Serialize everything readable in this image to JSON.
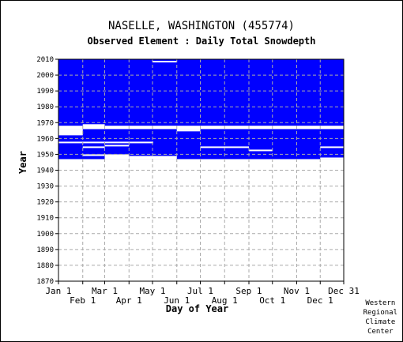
{
  "chart_data": {
    "type": "heatmap",
    "title": "NASELLE, WASHINGTON   (455774)",
    "subtitle": "Observed Element : Daily Total Snowdepth",
    "xlabel": "Day of Year",
    "ylabel": "Year",
    "ylim": [
      1870,
      2010
    ],
    "y_ticks": [
      1870,
      1880,
      1890,
      1900,
      1910,
      1920,
      1930,
      1940,
      1950,
      1960,
      1970,
      1980,
      1990,
      2000,
      2010
    ],
    "x_ticks_top_row": [
      "Jan 1",
      "Mar 1",
      "May 1",
      "Jul 1",
      "Sep 1",
      "Nov 1",
      "Dec 31"
    ],
    "x_ticks_bottom_row": [
      "Feb 1",
      "Apr 1",
      "Jun 1",
      "Aug 1",
      "Oct 1",
      "Dec 1"
    ],
    "tick_days": [
      1,
      32,
      60,
      91,
      121,
      152,
      182,
      213,
      244,
      274,
      305,
      335,
      365
    ],
    "grid": true,
    "data_color": "#0000ff",
    "legend": "none",
    "coverage": [
      {
        "name": "data present",
        "year_range": [
          1968,
          2010
        ],
        "day_range": [
          1,
          365
        ]
      },
      {
        "name": "data present",
        "year_range": [
          1947,
          1966
        ],
        "day_range": [
          1,
          365
        ]
      }
    ],
    "gaps": [
      {
        "year_range": [
          1966,
          1968
        ],
        "day_range": [
          1,
          365
        ]
      },
      {
        "year_range": [
          1966,
          1969
        ],
        "day_range": [
          32,
          60
        ]
      },
      {
        "year_range": [
          1962,
          1966
        ],
        "day_range": [
          1,
          32
        ]
      },
      {
        "year_range": [
          1964.5,
          1966
        ],
        "day_range": [
          152,
          182
        ]
      },
      {
        "year_range": [
          1957,
          1958
        ],
        "day_range": [
          1,
          122
        ]
      },
      {
        "year_range": [
          1954,
          1955
        ],
        "day_range": [
          32,
          60
        ]
      },
      {
        "year_range": [
          1955,
          1956
        ],
        "day_range": [
          60,
          91
        ]
      },
      {
        "year_range": [
          1954,
          1955
        ],
        "day_range": [
          182,
          244
        ]
      },
      {
        "year_range": [
          1952,
          1953
        ],
        "day_range": [
          244,
          274
        ]
      },
      {
        "year_range": [
          1954,
          1955
        ],
        "day_range": [
          335,
          365
        ]
      },
      {
        "year_range": [
          1949,
          1950
        ],
        "day_range": [
          32,
          60
        ]
      },
      {
        "year_range": [
          1947,
          1950
        ],
        "day_range": [
          60,
          91
        ]
      },
      {
        "year_range": [
          1947,
          1949
        ],
        "day_range": [
          91,
          152
        ]
      },
      {
        "year_range": [
          1947,
          1948
        ],
        "day_range": [
          335,
          365
        ]
      },
      {
        "year_range": [
          2008,
          2009
        ],
        "day_range": [
          121,
          152
        ]
      }
    ]
  },
  "credit": "Western\nRegional\nClimate\nCenter"
}
